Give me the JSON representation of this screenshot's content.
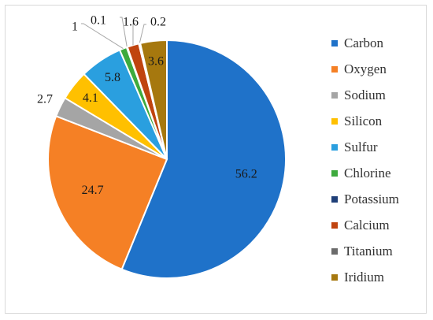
{
  "chart_data": {
    "type": "pie",
    "title": "",
    "legend_position": "right",
    "series": [
      {
        "name": "Carbon",
        "value": 56.2,
        "color": "#1f72c9",
        "label": "56.2"
      },
      {
        "name": "Oxygen",
        "value": 24.7,
        "color": "#f58025",
        "label": "24.7"
      },
      {
        "name": "Sodium",
        "value": 2.7,
        "color": "#a5a5a5",
        "label": "2.7"
      },
      {
        "name": "Silicon",
        "value": 4.1,
        "color": "#ffc000",
        "label": "4.1"
      },
      {
        "name": "Sulfur",
        "value": 5.8,
        "color": "#2a9fdf",
        "label": "5.8"
      },
      {
        "name": "Chlorine",
        "value": 1,
        "color": "#3daa3d",
        "label": "1"
      },
      {
        "name": "Potassium",
        "value": 0.1,
        "color": "#1f3f78",
        "label": "0.1"
      },
      {
        "name": "Calcium",
        "value": 1.6,
        "color": "#c0440f",
        "label": "1.6"
      },
      {
        "name": "Titanium",
        "value": 0.2,
        "color": "#6b6b6b",
        "label": "0.2"
      },
      {
        "name": "Iridium",
        "value": 3.6,
        "color": "#a6780e",
        "label": "3.6"
      }
    ]
  }
}
